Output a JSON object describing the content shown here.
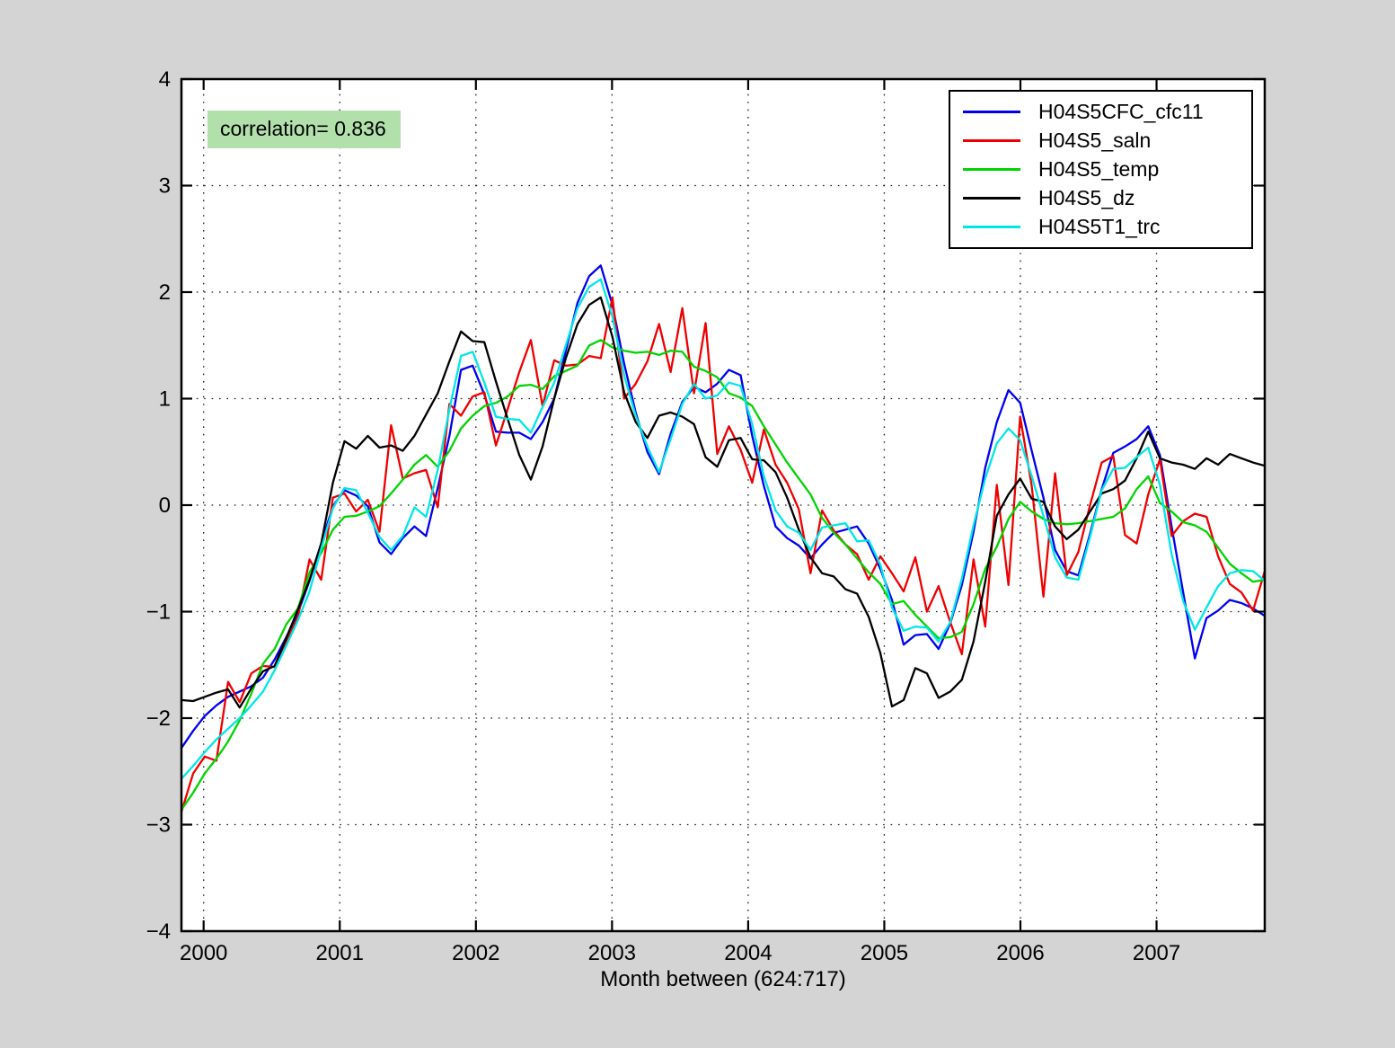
{
  "figure": {
    "background_color": "#d4d4d4",
    "plot_background_color": "#ffffff",
    "correlation_label": "correlation= 0.836",
    "correlation_bg_color": "#b2e0ab",
    "xlabel": "Month between (624:717)"
  },
  "axes": {
    "ylim": [
      -4,
      4
    ],
    "ytick_labels": [
      "-4",
      "-3",
      "-2",
      "-1",
      "0",
      "1",
      "2",
      "3",
      "4"
    ],
    "xtick_labels": [
      "2000",
      "2001",
      "2002",
      "2003",
      "2004",
      "2005",
      "2006",
      "2007"
    ],
    "grid_style": "dotted"
  },
  "chart_data": {
    "type": "line",
    "title": "",
    "xlabel": "Month between (624:717)",
    "ylabel": "",
    "x_month_range": [
      624,
      717
    ],
    "n_points": 94,
    "x_note": "94 monthly points spanning late-1999 through late-2007; year ticks 2000-2007",
    "ylim": [
      -4,
      4
    ],
    "yticks": [
      -4,
      -3,
      -2,
      -1,
      0,
      1,
      2,
      3,
      4
    ],
    "xticks_years": [
      2000,
      2001,
      2002,
      2003,
      2004,
      2005,
      2006,
      2007
    ],
    "grid": true,
    "legend_position": "top-right",
    "annotation": {
      "text": "correlation= 0.836",
      "value": 0.836
    },
    "series": [
      {
        "name": "H04S5CFC_cfc11",
        "color": "#0000ee",
        "values": [
          -2.28,
          -2.12,
          -1.98,
          -1.88,
          -1.8,
          -1.75,
          -1.7,
          -1.62,
          -1.45,
          -1.24,
          -1.01,
          -0.71,
          -0.36,
          -0.01,
          0.14,
          0.09,
          -0.01,
          -0.35,
          -0.46,
          -0.31,
          -0.2,
          -0.29,
          0.16,
          0.65,
          1.27,
          1.31,
          1.04,
          0.69,
          0.68,
          0.68,
          0.62,
          0.78,
          1.0,
          1.45,
          1.9,
          2.15,
          2.25,
          1.88,
          1.33,
          0.87,
          0.5,
          0.29,
          0.67,
          0.97,
          1.11,
          1.06,
          1.14,
          1.27,
          1.22,
          0.65,
          0.18,
          -0.2,
          -0.31,
          -0.38,
          -0.5,
          -0.37,
          -0.26,
          -0.23,
          -0.2,
          -0.36,
          -0.6,
          -0.89,
          -1.31,
          -1.22,
          -1.21,
          -1.35,
          -1.11,
          -0.75,
          -0.25,
          0.35,
          0.78,
          1.08,
          0.96,
          0.51,
          0.07,
          -0.42,
          -0.62,
          -0.66,
          -0.27,
          0.15,
          0.49,
          0.55,
          0.62,
          0.74,
          0.47,
          -0.2,
          -0.82,
          -1.44,
          -1.06,
          -0.99,
          -0.89,
          -0.92,
          -0.97,
          -1.04
        ]
      },
      {
        "name": "H04S5_saln",
        "color": "#ee0000",
        "values": [
          -2.88,
          -2.52,
          -2.36,
          -2.4,
          -1.66,
          -1.85,
          -1.58,
          -1.51,
          -1.52,
          -1.29,
          -1.05,
          -0.51,
          -0.7,
          0.07,
          0.11,
          -0.06,
          0.05,
          -0.25,
          0.75,
          0.25,
          0.3,
          0.33,
          -0.02,
          0.95,
          0.84,
          1.02,
          1.06,
          0.56,
          0.9,
          1.25,
          1.55,
          0.93,
          1.36,
          1.31,
          1.32,
          1.4,
          1.38,
          1.95,
          1.0,
          1.14,
          1.35,
          1.7,
          1.25,
          1.85,
          1.05,
          1.71,
          0.48,
          0.74,
          0.52,
          0.21,
          0.71,
          0.38,
          0.21,
          -0.04,
          -0.64,
          -0.05,
          -0.24,
          -0.37,
          -0.46,
          -0.7,
          -0.48,
          -0.64,
          -0.81,
          -0.49,
          -1.0,
          -0.76,
          -1.1,
          -1.4,
          -0.51,
          -1.14,
          0.19,
          -0.75,
          0.83,
          0.18,
          -0.86,
          0.3,
          -0.66,
          -0.44,
          0.0,
          0.4,
          0.46,
          -0.28,
          -0.36,
          0.1,
          0.43,
          -0.29,
          -0.15,
          -0.08,
          -0.11,
          -0.48,
          -0.74,
          -0.82,
          -0.99,
          -0.62
        ]
      },
      {
        "name": "H04S5_temp",
        "color": "#00d400",
        "values": [
          -2.86,
          -2.7,
          -2.52,
          -2.38,
          -2.22,
          -2.02,
          -1.77,
          -1.49,
          -1.35,
          -1.12,
          -0.97,
          -0.63,
          -0.45,
          -0.23,
          -0.11,
          -0.1,
          -0.06,
          -0.01,
          0.11,
          0.24,
          0.38,
          0.47,
          0.36,
          0.51,
          0.72,
          0.84,
          0.93,
          0.96,
          1.02,
          1.12,
          1.13,
          1.09,
          1.21,
          1.26,
          1.31,
          1.5,
          1.55,
          1.48,
          1.45,
          1.43,
          1.44,
          1.41,
          1.45,
          1.44,
          1.3,
          1.26,
          1.2,
          1.05,
          1.01,
          0.93,
          0.74,
          0.57,
          0.4,
          0.25,
          0.1,
          -0.12,
          -0.26,
          -0.37,
          -0.5,
          -0.63,
          -0.74,
          -0.93,
          -0.9,
          -1.03,
          -1.14,
          -1.25,
          -1.24,
          -1.19,
          -0.93,
          -0.6,
          -0.39,
          -0.13,
          0.03,
          -0.06,
          -0.13,
          -0.17,
          -0.18,
          -0.17,
          -0.15,
          -0.13,
          -0.11,
          -0.03,
          0.15,
          0.27,
          0.02,
          -0.06,
          -0.16,
          -0.19,
          -0.25,
          -0.4,
          -0.55,
          -0.64,
          -0.72,
          -0.7
        ]
      },
      {
        "name": "H04S5_dz",
        "color": "#000000",
        "values": [
          -1.83,
          -1.84,
          -1.8,
          -1.76,
          -1.73,
          -1.9,
          -1.72,
          -1.56,
          -1.51,
          -1.25,
          -0.98,
          -0.7,
          -0.36,
          0.21,
          0.6,
          0.53,
          0.65,
          0.54,
          0.56,
          0.51,
          0.65,
          0.85,
          1.05,
          1.35,
          1.63,
          1.54,
          1.53,
          1.16,
          0.81,
          0.47,
          0.24,
          0.55,
          1.0,
          1.38,
          1.7,
          1.88,
          1.95,
          1.58,
          1.06,
          0.78,
          0.63,
          0.84,
          0.87,
          0.83,
          0.76,
          0.45,
          0.36,
          0.61,
          0.63,
          0.43,
          0.42,
          0.31,
          0.07,
          -0.23,
          -0.49,
          -0.64,
          -0.67,
          -0.79,
          -0.83,
          -1.05,
          -1.39,
          -1.89,
          -1.83,
          -1.53,
          -1.58,
          -1.81,
          -1.75,
          -1.64,
          -1.28,
          -0.72,
          -0.1,
          0.1,
          0.25,
          0.06,
          0.03,
          -0.2,
          -0.32,
          -0.23,
          -0.06,
          0.11,
          0.15,
          0.23,
          0.44,
          0.69,
          0.44,
          0.4,
          0.38,
          0.34,
          0.44,
          0.38,
          0.48,
          0.44,
          0.4,
          0.37
        ]
      },
      {
        "name": "H04S5T1_trc",
        "color": "#00e6e6",
        "values": [
          -2.57,
          -2.45,
          -2.32,
          -2.2,
          -2.1,
          -2.0,
          -1.88,
          -1.75,
          -1.55,
          -1.32,
          -1.08,
          -0.81,
          -0.41,
          -0.03,
          0.16,
          0.14,
          -0.07,
          -0.3,
          -0.42,
          -0.29,
          -0.02,
          -0.11,
          0.33,
          0.9,
          1.4,
          1.44,
          1.15,
          0.83,
          0.81,
          0.8,
          0.68,
          0.92,
          1.15,
          1.5,
          1.85,
          2.05,
          2.12,
          1.77,
          1.22,
          0.84,
          0.55,
          0.31,
          0.62,
          0.95,
          1.14,
          1.0,
          1.03,
          1.15,
          1.12,
          0.76,
          0.27,
          -0.05,
          -0.2,
          -0.26,
          -0.42,
          -0.21,
          -0.19,
          -0.17,
          -0.34,
          -0.33,
          -0.56,
          -0.96,
          -1.18,
          -1.14,
          -1.15,
          -1.28,
          -1.1,
          -0.69,
          -0.19,
          0.25,
          0.58,
          0.72,
          0.61,
          0.27,
          -0.1,
          -0.49,
          -0.68,
          -0.7,
          -0.3,
          0.14,
          0.34,
          0.35,
          0.45,
          0.54,
          0.19,
          -0.46,
          -0.9,
          -1.17,
          -0.96,
          -0.76,
          -0.64,
          -0.61,
          -0.62,
          -0.71
        ]
      }
    ]
  }
}
